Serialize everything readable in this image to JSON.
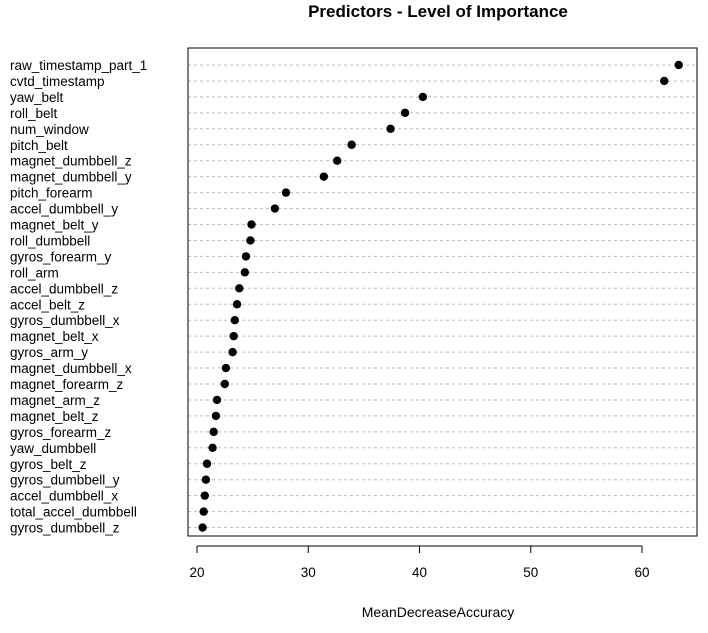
{
  "chart_data": {
    "type": "scatter",
    "subtype": "dotchart",
    "title": "Predictors - Level of Importance",
    "xlabel": "MeanDecreaseAccuracy",
    "ylabel": "",
    "xlim": [
      19.5,
      65
    ],
    "xticks": [
      20,
      30,
      40,
      50,
      60
    ],
    "grid": "horizontal dashed",
    "legend": "none",
    "dot_color": "#000000",
    "categories": [
      "raw_timestamp_part_1",
      "cvtd_timestamp",
      "yaw_belt",
      "roll_belt",
      "num_window",
      "pitch_belt",
      "magnet_dumbbell_z",
      "magnet_dumbbell_y",
      "pitch_forearm",
      "accel_dumbbell_y",
      "magnet_belt_y",
      "roll_dumbbell",
      "gyros_forearm_y",
      "roll_arm",
      "accel_dumbbell_z",
      "accel_belt_z",
      "gyros_dumbbell_x",
      "magnet_belt_x",
      "gyros_arm_y",
      "magnet_dumbbell_x",
      "magnet_forearm_z",
      "magnet_arm_z",
      "magnet_belt_z",
      "gyros_forearm_z",
      "yaw_dumbbell",
      "gyros_belt_z",
      "gyros_dumbbell_y",
      "accel_dumbbell_x",
      "total_accel_dumbbell",
      "gyros_dumbbell_z"
    ],
    "values": [
      63.3,
      62.0,
      40.3,
      38.7,
      37.4,
      33.9,
      32.6,
      31.4,
      28.0,
      27.0,
      24.9,
      24.8,
      24.4,
      24.3,
      23.8,
      23.6,
      23.4,
      23.3,
      23.2,
      22.6,
      22.5,
      21.8,
      21.7,
      21.5,
      21.4,
      20.9,
      20.8,
      20.7,
      20.6,
      20.5
    ]
  }
}
